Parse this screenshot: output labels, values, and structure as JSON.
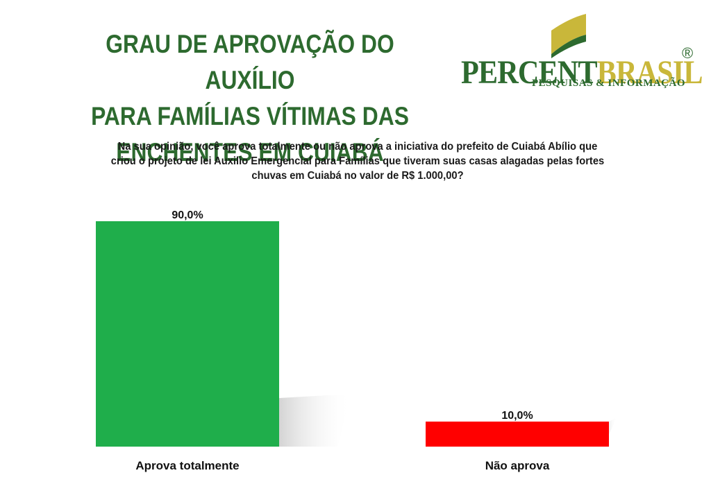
{
  "title_lines": [
    "GRAU DE APROVAÇÃO DO AUXÍLIO",
    "PARA FAMÍLIAS VÍTIMAS DAS",
    "ENCHENTES EM CUIABÁ"
  ],
  "logo": {
    "part1": "PERCENT",
    "part2": "BRASIL",
    "registered": "®",
    "tagline": "PESQUISAS & INFORMAÇÃO"
  },
  "question_lines": [
    "Na sua opinião, você aprova totalmente ou não aprova a iniciativa do prefeito de Cuiabá Abílio que",
    "criou o projeto de lei Auxilio Emergencial para Famílias que tiveram suas casas alagadas pelas fortes",
    "chuvas em Cuiabá no valor de R$ 1.000,00?"
  ],
  "colors": {
    "title": "#2d6a2f",
    "brand_gold": "#c9b73a"
  },
  "chart_data": {
    "type": "bar",
    "categories": [
      "Aprova totalmente",
      "Não aprova"
    ],
    "values": [
      90.0,
      10.0
    ],
    "data_labels": [
      "90,0%",
      "10,0%"
    ],
    "colors": [
      "#1fae4b",
      "#ff0000"
    ],
    "ylim": [
      0,
      100
    ],
    "grid": false,
    "legend": "none"
  }
}
